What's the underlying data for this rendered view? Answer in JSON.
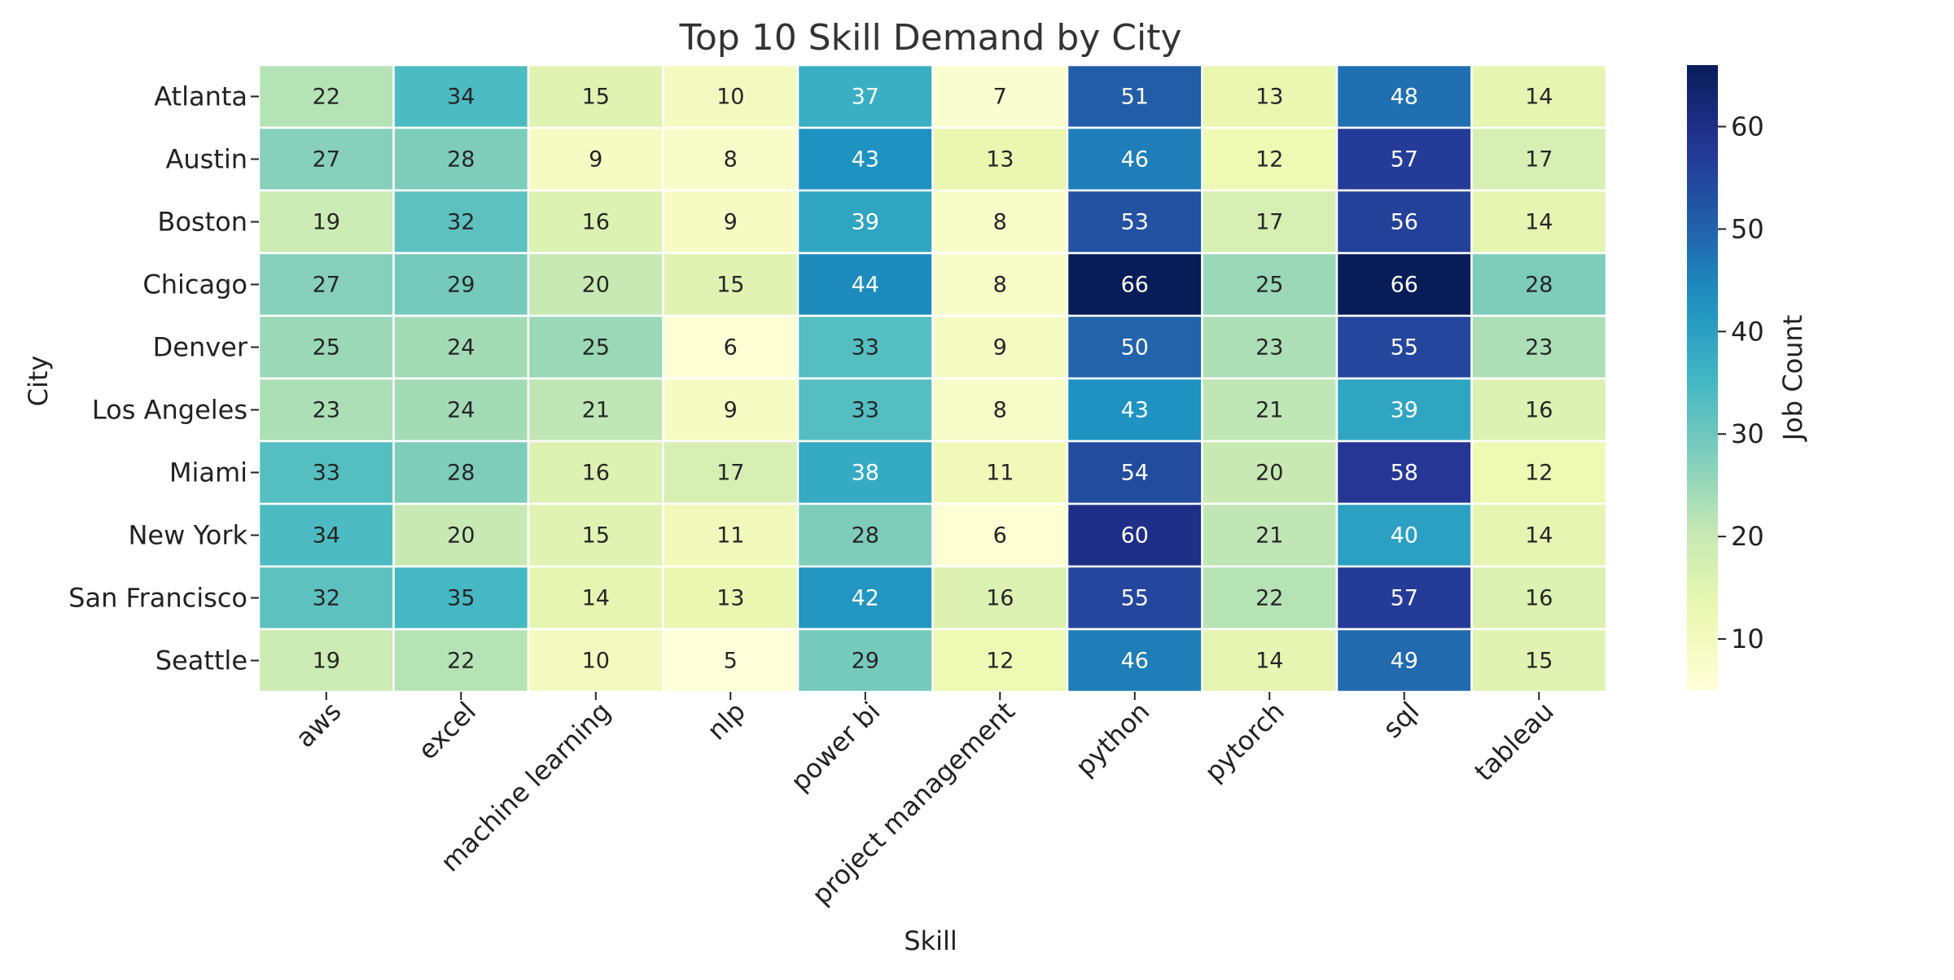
{
  "chart_data": {
    "type": "heatmap",
    "title": "Top 10 Skill Demand by City",
    "xlabel": "Skill",
    "ylabel": "City",
    "x_categories": [
      "aws",
      "excel",
      "machine learning",
      "nlp",
      "power bi",
      "project management",
      "python",
      "pytorch",
      "sql",
      "tableau"
    ],
    "y_categories": [
      "Atlanta",
      "Austin",
      "Boston",
      "Chicago",
      "Denver",
      "Los Angeles",
      "Miami",
      "New York",
      "San Francisco",
      "Seattle"
    ],
    "values": [
      [
        22,
        34,
        15,
        10,
        37,
        7,
        51,
        13,
        48,
        14
      ],
      [
        27,
        28,
        9,
        8,
        43,
        13,
        46,
        12,
        57,
        17
      ],
      [
        19,
        32,
        16,
        9,
        39,
        8,
        53,
        17,
        56,
        14
      ],
      [
        27,
        29,
        20,
        15,
        44,
        8,
        66,
        25,
        66,
        28
      ],
      [
        25,
        24,
        25,
        6,
        33,
        9,
        50,
        23,
        55,
        23
      ],
      [
        23,
        24,
        21,
        9,
        33,
        8,
        43,
        21,
        39,
        16
      ],
      [
        33,
        28,
        16,
        17,
        38,
        11,
        54,
        20,
        58,
        12
      ],
      [
        34,
        20,
        15,
        11,
        28,
        6,
        60,
        21,
        40,
        14
      ],
      [
        32,
        35,
        14,
        13,
        42,
        16,
        55,
        22,
        57,
        16
      ],
      [
        19,
        22,
        10,
        5,
        29,
        12,
        46,
        14,
        49,
        15
      ]
    ],
    "colormap": "YlGnBu",
    "colorbar": {
      "label": "Job Count",
      "range": [
        5,
        66
      ],
      "ticks": [
        10,
        20,
        30,
        40,
        50,
        60
      ]
    },
    "grid": false,
    "annotations": true
  }
}
